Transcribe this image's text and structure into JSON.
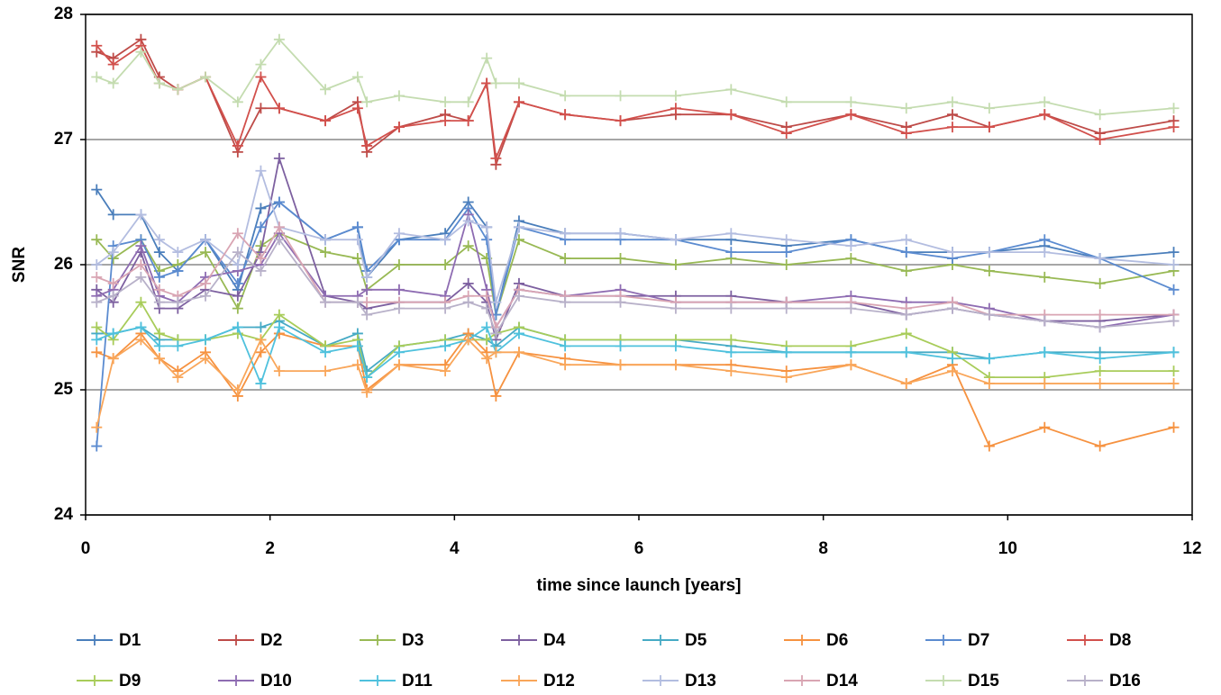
{
  "chart_data": {
    "type": "line",
    "xlabel": "time since launch [years]",
    "ylabel": "SNR",
    "xlim": [
      0,
      12
    ],
    "xticks": [
      0,
      2,
      4,
      6,
      8,
      10,
      12
    ],
    "ylim": [
      24,
      28
    ],
    "yticks": [
      24,
      25,
      26,
      27,
      28
    ],
    "grid": true,
    "legend": "bottom",
    "x": [
      0.12,
      0.3,
      0.6,
      0.8,
      1.0,
      1.3,
      1.65,
      1.9,
      2.1,
      2.6,
      2.95,
      3.05,
      3.4,
      3.9,
      4.15,
      4.35,
      4.45,
      4.7,
      5.2,
      5.8,
      6.4,
      7.0,
      7.6,
      8.3,
      8.9,
      9.4,
      9.8,
      10.4,
      11.0,
      11.8
    ],
    "series": [
      {
        "name": "D1",
        "color": "#4a7ebb",
        "values": [
          26.6,
          26.4,
          26.4,
          26.1,
          25.95,
          26.2,
          25.8,
          26.45,
          26.5,
          26.2,
          26.3,
          25.9,
          26.2,
          26.25,
          26.5,
          26.3,
          25.6,
          26.35,
          26.25,
          26.25,
          26.2,
          26.2,
          26.15,
          26.2,
          26.1,
          26.1,
          26.1,
          26.15,
          26.05,
          26.1
        ]
      },
      {
        "name": "D2",
        "color": "#be4b48",
        "values": [
          27.7,
          27.65,
          27.8,
          27.5,
          27.4,
          27.5,
          26.9,
          27.25,
          27.25,
          27.15,
          27.3,
          26.9,
          27.1,
          27.2,
          27.15,
          27.45,
          26.8,
          27.3,
          27.2,
          27.15,
          27.2,
          27.2,
          27.1,
          27.2,
          27.1,
          27.2,
          27.1,
          27.2,
          27.05,
          27.15
        ]
      },
      {
        "name": "D3",
        "color": "#98b954",
        "values": [
          26.2,
          26.05,
          26.2,
          25.95,
          26.0,
          26.1,
          25.65,
          26.15,
          26.25,
          26.1,
          26.05,
          25.8,
          26.0,
          26.0,
          26.15,
          26.05,
          25.6,
          26.2,
          26.05,
          26.05,
          26.0,
          26.05,
          26.0,
          26.05,
          25.95,
          26.0,
          25.95,
          25.9,
          25.85,
          25.95
        ]
      },
      {
        "name": "D4",
        "color": "#7d60a0",
        "values": [
          25.8,
          25.7,
          26.1,
          25.65,
          25.65,
          25.8,
          25.75,
          26.1,
          26.85,
          25.75,
          25.7,
          25.65,
          25.7,
          25.7,
          25.85,
          25.7,
          25.4,
          25.85,
          25.75,
          25.75,
          25.75,
          25.75,
          25.7,
          25.7,
          25.6,
          25.65,
          25.6,
          25.55,
          25.55,
          25.6
        ]
      },
      {
        "name": "D5",
        "color": "#46aac5",
        "values": [
          25.45,
          25.45,
          25.5,
          25.4,
          25.4,
          25.4,
          25.5,
          25.5,
          25.55,
          25.35,
          25.45,
          25.15,
          25.35,
          25.4,
          25.45,
          25.4,
          25.35,
          25.5,
          25.4,
          25.4,
          25.4,
          25.35,
          25.3,
          25.3,
          25.3,
          25.3,
          25.25,
          25.3,
          25.3,
          25.3
        ]
      },
      {
        "name": "D6",
        "color": "#f69240",
        "values": [
          25.3,
          25.25,
          25.45,
          25.25,
          25.15,
          25.3,
          24.95,
          25.3,
          25.45,
          25.35,
          25.35,
          25.0,
          25.2,
          25.2,
          25.45,
          25.3,
          24.95,
          25.3,
          25.25,
          25.2,
          25.2,
          25.2,
          25.15,
          25.2,
          25.05,
          25.2,
          24.55,
          24.7,
          24.55,
          24.7
        ]
      },
      {
        "name": "D7",
        "color": "#5b8bd0",
        "values": [
          24.55,
          26.15,
          26.2,
          25.9,
          25.95,
          26.2,
          25.85,
          26.3,
          26.5,
          26.2,
          26.3,
          25.95,
          26.2,
          26.2,
          26.45,
          26.2,
          25.6,
          26.3,
          26.2,
          26.2,
          26.2,
          26.1,
          26.1,
          26.2,
          26.1,
          26.05,
          26.1,
          26.2,
          26.05,
          25.8
        ]
      },
      {
        "name": "D8",
        "color": "#d2504c",
        "values": [
          27.75,
          27.6,
          27.75,
          27.45,
          27.4,
          27.5,
          26.95,
          27.5,
          27.25,
          27.15,
          27.25,
          26.95,
          27.1,
          27.15,
          27.15,
          27.45,
          26.85,
          27.3,
          27.2,
          27.15,
          27.25,
          27.2,
          27.05,
          27.2,
          27.05,
          27.1,
          27.1,
          27.2,
          27.0,
          27.1
        ]
      },
      {
        "name": "D9",
        "color": "#a8cc5a",
        "values": [
          25.5,
          25.4,
          25.7,
          25.45,
          25.4,
          25.4,
          25.45,
          25.4,
          25.6,
          25.35,
          25.4,
          25.1,
          25.35,
          25.4,
          25.4,
          25.4,
          25.45,
          25.5,
          25.4,
          25.4,
          25.4,
          25.4,
          25.35,
          25.35,
          25.45,
          25.3,
          25.1,
          25.1,
          25.15,
          25.15
        ]
      },
      {
        "name": "D10",
        "color": "#8e6cb2",
        "values": [
          25.75,
          25.8,
          26.15,
          25.75,
          25.7,
          25.9,
          25.95,
          26.0,
          26.25,
          25.75,
          25.75,
          25.8,
          25.8,
          25.75,
          26.4,
          25.8,
          25.5,
          25.8,
          25.75,
          25.8,
          25.7,
          25.7,
          25.7,
          25.75,
          25.7,
          25.7,
          25.65,
          25.55,
          25.5,
          25.6
        ]
      },
      {
        "name": "D11",
        "color": "#4fc1dd",
        "values": [
          25.4,
          25.45,
          25.5,
          25.35,
          25.35,
          25.4,
          25.5,
          25.05,
          25.5,
          25.3,
          25.35,
          25.1,
          25.3,
          25.35,
          25.4,
          25.5,
          25.3,
          25.45,
          25.35,
          25.35,
          25.35,
          25.3,
          25.3,
          25.3,
          25.3,
          25.25,
          25.25,
          25.3,
          25.25,
          25.3
        ]
      },
      {
        "name": "D12",
        "color": "#f9a65a",
        "values": [
          24.7,
          25.25,
          25.4,
          25.25,
          25.1,
          25.25,
          25.0,
          25.4,
          25.15,
          25.15,
          25.2,
          24.98,
          25.2,
          25.15,
          25.4,
          25.25,
          25.3,
          25.3,
          25.2,
          25.2,
          25.2,
          25.15,
          25.1,
          25.2,
          25.05,
          25.15,
          25.05,
          25.05,
          25.05,
          25.05
        ]
      },
      {
        "name": "D13",
        "color": "#b3bde0",
        "values": [
          26.0,
          26.1,
          26.4,
          26.2,
          26.1,
          26.2,
          26.0,
          26.75,
          26.3,
          26.2,
          26.2,
          25.9,
          26.25,
          26.2,
          26.35,
          26.3,
          25.7,
          26.3,
          26.25,
          26.25,
          26.2,
          26.25,
          26.2,
          26.15,
          26.2,
          26.1,
          26.1,
          26.1,
          26.05,
          26.0
        ]
      },
      {
        "name": "D14",
        "color": "#d9a5b3",
        "values": [
          25.9,
          25.85,
          26.0,
          25.8,
          25.75,
          25.85,
          26.25,
          26.05,
          26.3,
          25.7,
          25.7,
          25.7,
          25.7,
          25.7,
          25.75,
          25.75,
          25.5,
          25.8,
          25.75,
          25.75,
          25.7,
          25.7,
          25.7,
          25.7,
          25.65,
          25.7,
          25.6,
          25.6,
          25.6,
          25.6
        ]
      },
      {
        "name": "D15",
        "color": "#c4dcb0",
        "values": [
          27.5,
          27.45,
          27.7,
          27.45,
          27.4,
          27.5,
          27.3,
          27.6,
          27.8,
          27.4,
          27.5,
          27.3,
          27.35,
          27.3,
          27.3,
          27.65,
          27.45,
          27.45,
          27.35,
          27.35,
          27.35,
          27.4,
          27.3,
          27.3,
          27.25,
          27.3,
          27.25,
          27.3,
          27.2,
          27.25
        ]
      },
      {
        "name": "D16",
        "color": "#b8b1c9",
        "values": [
          25.7,
          25.75,
          25.9,
          25.7,
          25.7,
          25.75,
          26.1,
          25.95,
          26.2,
          25.7,
          25.7,
          25.6,
          25.65,
          25.65,
          25.7,
          25.65,
          25.45,
          25.75,
          25.7,
          25.7,
          25.65,
          25.65,
          25.65,
          25.65,
          25.6,
          25.65,
          25.6,
          25.55,
          25.5,
          25.55
        ]
      }
    ]
  }
}
